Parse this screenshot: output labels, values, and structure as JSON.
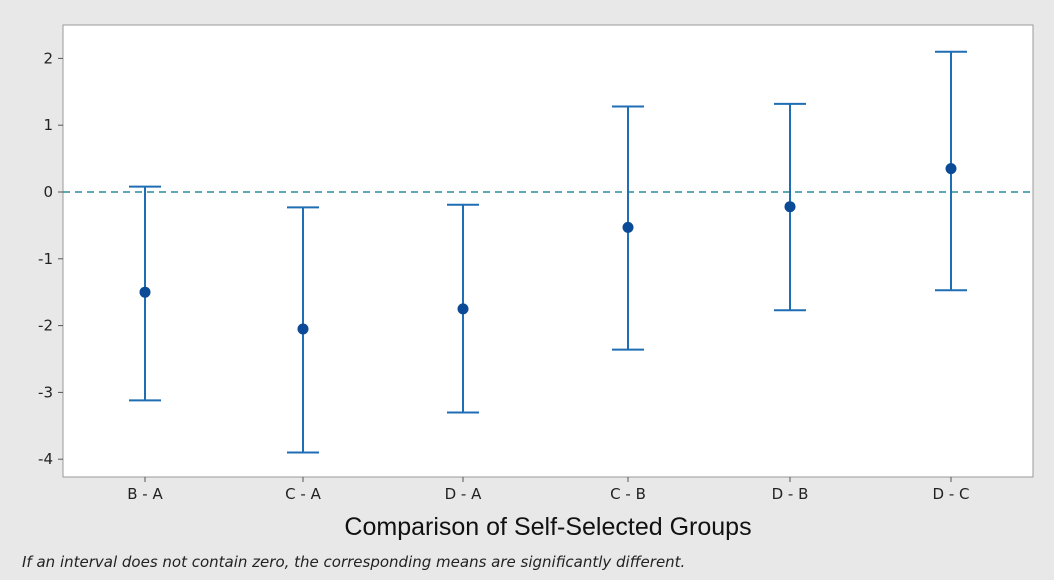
{
  "chart_data": {
    "type": "interval",
    "categories": [
      "B - A",
      "C - A",
      "D - A",
      "C - B",
      "D - B",
      "D - C"
    ],
    "estimates": [
      -1.5,
      -2.05,
      -1.75,
      -0.53,
      -0.22,
      0.35
    ],
    "lower": [
      -3.12,
      -3.9,
      -3.3,
      -2.36,
      -1.77,
      -1.47
    ],
    "upper": [
      0.08,
      -0.23,
      -0.19,
      1.28,
      1.32,
      2.1
    ],
    "xlabel": "Comparison of Self-Selected Groups",
    "ylabel": "",
    "ylim": [
      -4.25,
      2.5
    ],
    "yticks": [
      2,
      1,
      0,
      -1,
      -2,
      -3,
      -4
    ],
    "reference_line": 0,
    "grid": false,
    "colors": {
      "interval": "#1f6eb4",
      "point": "#0b4a96",
      "reference": "#2a8a9a",
      "plot_bg": "#ffffff",
      "page_bg": "#e8e8e8"
    }
  },
  "footnote": "If an interval does not contain zero, the corresponding means are significantly different."
}
